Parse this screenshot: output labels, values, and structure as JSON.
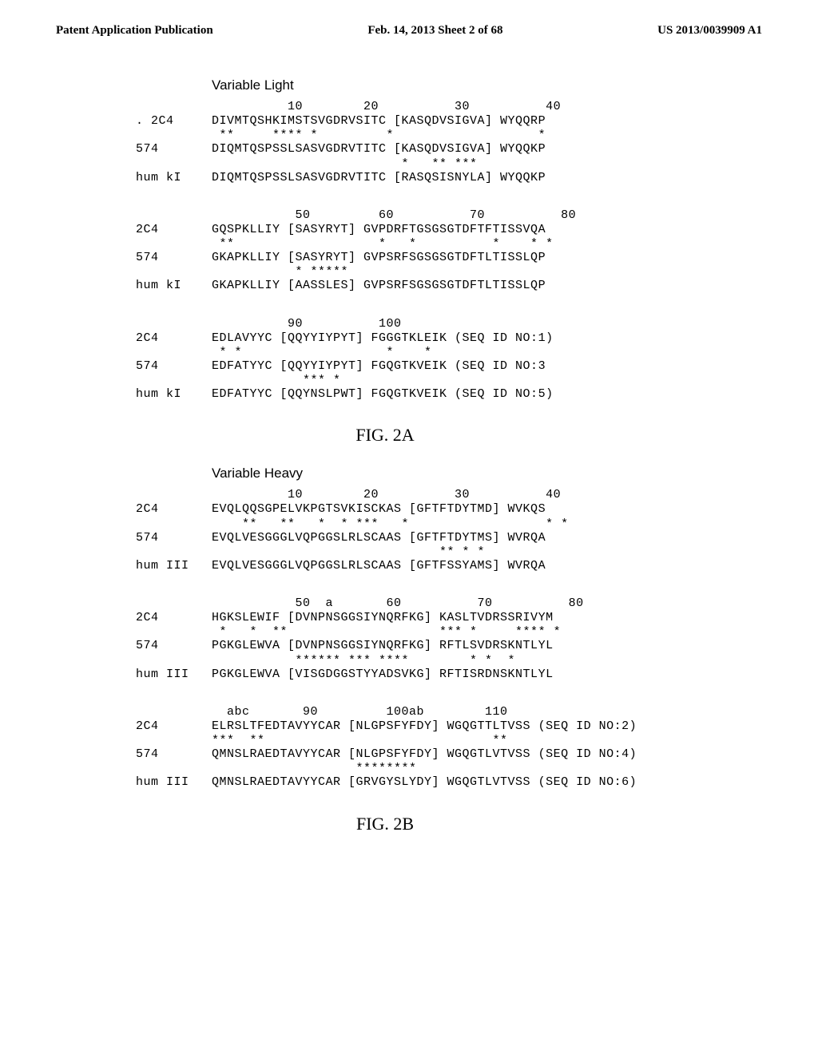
{
  "header": {
    "left": "Patent Application Publication",
    "center": "Feb. 14, 2013  Sheet 2 of 68",
    "right": "US 2013/0039909 A1"
  },
  "figA": {
    "title": "Variable Light",
    "caption": "FIG. 2A",
    "blocks": [
      {
        "ruler": "          10        20          30          40",
        "rows": [
          {
            "name": ". 2C4",
            "seq": "DIVMTQSHKIMSTSVGDRVSITC [KASQDVSIGVA] WYQQRP"
          },
          {
            "marker": " **     **** *         *                   *"
          },
          {
            "name": "574",
            "seq": "DIQMTQSPSSLSASVGDRVTITC [KASQDVSIGVA] WYQQKP"
          },
          {
            "marker": "                         *   ** ***"
          },
          {
            "name": "hum kI",
            "seq": "DIQMTQSPSSLSASVGDRVTITC [RASQSISNYLA] WYQQKP"
          }
        ]
      },
      {
        "ruler": "           50         60          70          80",
        "rows": [
          {
            "name": "2C4",
            "seq": "GQSPKLLIY [SASYRYT] GVPDRFTGSGSGTDFTFTISSVQA"
          },
          {
            "marker": " **                   *   *          *    * *"
          },
          {
            "name": "574",
            "seq": "GKAPKLLIY [SASYRYT] GVPSRFSGSGSGTDFTLTISSLQP"
          },
          {
            "marker": "           * *****"
          },
          {
            "name": "hum kI",
            "seq": "GKAPKLLIY [AASSLES] GVPSRFSGSGSGTDFTLTISSLQP"
          }
        ]
      },
      {
        "ruler": "          90          100",
        "rows": [
          {
            "name": "2C4",
            "seq": "EDLAVYYC [QQYYIYPYT] FGGGTKLEIK (SEQ ID NO:1)"
          },
          {
            "marker": " * *                   *    *"
          },
          {
            "name": "574",
            "seq": "EDFATYYC [QQYYIYPYT] FGQGTKVEIK (SEQ ID NO:3"
          },
          {
            "marker": "            *** *"
          },
          {
            "name": "hum kI",
            "seq": "EDFATYYC [QQYNSLPWT] FGQGTKVEIK (SEQ ID NO:5)"
          }
        ]
      }
    ]
  },
  "figB": {
    "title": "Variable Heavy",
    "caption": "FIG. 2B",
    "blocks": [
      {
        "ruler": "          10        20          30          40",
        "rows": [
          {
            "name": "2C4",
            "seq": "EVQLQQSGPELVKPGTSVKISCKAS [GFTFTDYTMD] WVKQS"
          },
          {
            "marker": "    **   **   *  * ***   *                  * *"
          },
          {
            "name": "574",
            "seq": "EVQLVESGGGLVQPGGSLRLSCAAS [GFTFTDYTMS] WVRQA"
          },
          {
            "marker": "                              ** * *"
          },
          {
            "name": "hum III",
            "seq": "EVQLVESGGGLVQPGGSLRLSCAAS [GFTFSSYAMS] WVRQA"
          }
        ]
      },
      {
        "ruler": "           50  a       60          70          80",
        "rows": [
          {
            "name": "2C4",
            "seq": "HGKSLEWIF [DVNPNSGGSIYNQRFKG] KASLTVDRSSRIVYM"
          },
          {
            "marker": " *   *  **                    *** *     **** *"
          },
          {
            "name": "574",
            "seq": "PGKGLEWVA [DVNPNSGGSIYNQRFKG] RFTLSVDRSKNTLYL"
          },
          {
            "marker": "           ****** *** ****        * *  *"
          },
          {
            "name": "hum III",
            "seq": "PGKGLEWVA [VISGDGGSTYYADSVKG] RFTISRDNSKNTLYL"
          }
        ]
      },
      {
        "ruler": "  abc       90         100ab        110",
        "rows": [
          {
            "name": "2C4",
            "seq": "ELRSLTFEDTAVYYCAR [NLGPSFYFDY] WGQGTTLTVSS (SEQ ID NO:2)"
          },
          {
            "marker": "***  **                              **"
          },
          {
            "name": "574",
            "seq": "QMNSLRAEDTAVYYCAR [NLGPSFYFDY] WGQGTLVTVSS (SEQ ID NO:4)"
          },
          {
            "marker": "                   ********"
          },
          {
            "name": "hum III",
            "seq": "QMNSLRAEDTAVYYCAR [GRVGYSLYDY] WGQGTLVTVSS (SEQ ID NO:6)"
          }
        ]
      }
    ]
  }
}
